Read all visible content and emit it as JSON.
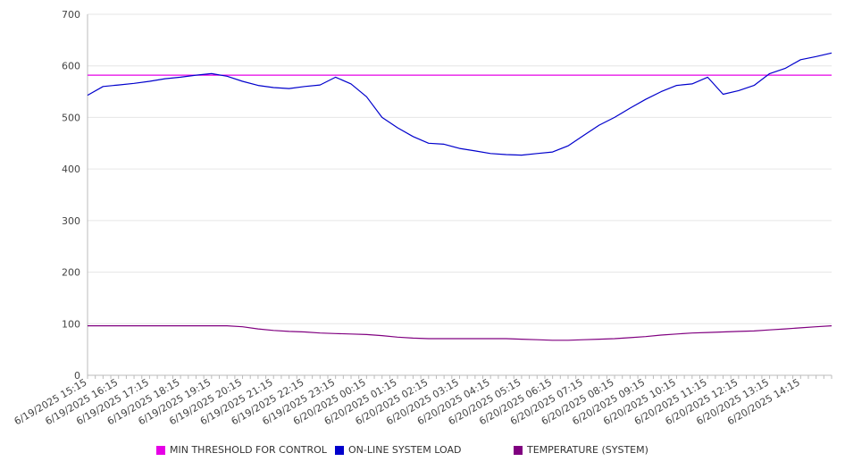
{
  "chart_data": {
    "type": "line",
    "title": "",
    "xlabel": "",
    "ylabel": "",
    "ylim": [
      0,
      700
    ],
    "y_ticks": [
      0,
      100,
      200,
      300,
      400,
      500,
      600,
      700
    ],
    "grid": "horizontal",
    "legend_position": "bottom",
    "x_tick_labels": [
      "6/19/2025 15:15",
      "6/19/2025 16:15",
      "6/19/2025 17:15",
      "6/19/2025 18:15",
      "6/19/2025 19:15",
      "6/19/2025 20:15",
      "6/19/2025 21:15",
      "6/19/2025 22:15",
      "6/19/2025 23:15",
      "6/20/2025 00:15",
      "6/20/2025 01:15",
      "6/20/2025 02:15",
      "6/20/2025 03:15",
      "6/20/2025 04:15",
      "6/20/2025 05:15",
      "6/20/2025 06:15",
      "6/20/2025 07:15",
      "6/20/2025 08:15",
      "6/20/2025 09:15",
      "6/20/2025 10:15",
      "6/20/2025 11:15",
      "6/20/2025 12:15",
      "6/20/2025 13:15",
      "6/20/2025 14:15"
    ],
    "x_start": "6/19/2025 15:15",
    "x_end": "6/20/2025 15:15",
    "x_step_minutes": 30,
    "series": [
      {
        "name": "MIN THRESHOLD FOR CONTROL",
        "color": "#e600e6",
        "values": [
          582,
          582,
          582,
          582,
          582,
          582,
          582,
          582,
          582,
          582,
          582,
          582,
          582,
          582,
          582,
          582,
          582,
          582,
          582,
          582,
          582,
          582,
          582,
          582,
          582,
          582,
          582,
          582,
          582,
          582,
          582,
          582,
          582,
          582,
          582,
          582,
          582,
          582,
          582,
          582,
          582,
          582,
          582,
          582,
          582,
          582,
          582,
          582,
          582
        ]
      },
      {
        "name": "ON-LINE SYSTEM LOAD",
        "color": "#0000cc",
        "values": [
          543,
          560,
          563,
          566,
          570,
          575,
          578,
          582,
          585,
          580,
          570,
          562,
          558,
          556,
          560,
          563,
          578,
          565,
          540,
          500,
          480,
          463,
          450,
          448,
          440,
          435,
          430,
          428,
          427,
          430,
          433,
          445,
          465,
          485,
          500,
          518,
          535,
          550,
          562,
          565,
          578,
          545,
          552,
          562,
          585,
          595,
          612,
          618,
          625
        ]
      },
      {
        "name": "TEMPERATURE (SYSTEM)",
        "color": "#800080",
        "values": [
          96,
          96,
          96,
          96,
          96,
          96,
          96,
          96,
          96,
          96,
          94,
          90,
          87,
          85,
          84,
          82,
          81,
          80,
          79,
          77,
          74,
          72,
          71,
          71,
          71,
          71,
          71,
          71,
          70,
          69,
          68,
          68,
          69,
          70,
          71,
          73,
          75,
          78,
          80,
          82,
          83,
          84,
          85,
          86,
          88,
          90,
          92,
          94,
          96
        ]
      }
    ]
  }
}
